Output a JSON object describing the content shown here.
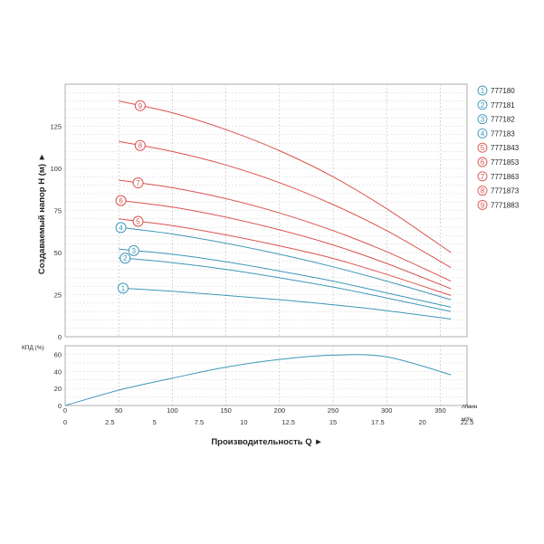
{
  "chart_data": [
    {
      "type": "line",
      "ylabel": "Создаваемый напор H (м) ►",
      "ylim": [
        0,
        150
      ],
      "yticks": [
        "0",
        "25",
        "50",
        "75",
        "100",
        "125"
      ],
      "x_unit": "л/мин",
      "xlim": [
        0,
        375
      ],
      "grid": true,
      "legend_position": "right",
      "series": [
        {
          "name": "777180",
          "marker": "1",
          "color": "#3d97b9",
          "x": [
            50,
            100,
            150,
            200,
            250,
            300,
            360
          ],
          "values": [
            29,
            27,
            24.5,
            22,
            19,
            15.5,
            10.5
          ]
        },
        {
          "name": "777181",
          "marker": "2",
          "color": "#3d97b9",
          "x": [
            50,
            100,
            150,
            200,
            250,
            300,
            360
          ],
          "values": [
            47,
            44,
            40,
            35,
            29.5,
            23,
            15
          ]
        },
        {
          "name": "777182",
          "marker": "3",
          "color": "#3d97b9",
          "x": [
            50,
            100,
            150,
            200,
            250,
            300,
            360
          ],
          "values": [
            52,
            49,
            44.5,
            39,
            33,
            26,
            17.5
          ]
        },
        {
          "name": "777183",
          "marker": "4",
          "color": "#3d97b9",
          "x": [
            50,
            100,
            150,
            200,
            250,
            300,
            360
          ],
          "values": [
            65,
            61,
            55.5,
            49,
            41.5,
            33,
            22
          ]
        },
        {
          "name": "7771843",
          "marker": "5",
          "color": "#d9534f",
          "x": [
            50,
            100,
            150,
            200,
            250,
            300,
            360
          ],
          "values": [
            70,
            66,
            60.5,
            54,
            46.5,
            37,
            24.5
          ]
        },
        {
          "name": "7771853",
          "marker": "6",
          "color": "#d9534f",
          "x": [
            50,
            100,
            150,
            200,
            250,
            300,
            360
          ],
          "values": [
            81,
            77,
            71,
            63.5,
            54.5,
            43.5,
            28.5
          ]
        },
        {
          "name": "7771863",
          "marker": "7",
          "color": "#d9534f",
          "x": [
            50,
            100,
            150,
            200,
            250,
            300,
            360
          ],
          "values": [
            93,
            88.5,
            82,
            73.5,
            63,
            50.5,
            33
          ]
        },
        {
          "name": "7771873",
          "marker": "8",
          "color": "#d9534f",
          "x": [
            50,
            100,
            150,
            200,
            250,
            300,
            360
          ],
          "values": [
            116,
            110,
            102,
            91.5,
            78.5,
            63,
            41
          ]
        },
        {
          "name": "7771883",
          "marker": "9",
          "color": "#d9534f",
          "x": [
            50,
            100,
            150,
            200,
            250,
            300,
            360
          ],
          "values": [
            140,
            133,
            123,
            110.5,
            95,
            76,
            50
          ]
        }
      ]
    },
    {
      "type": "line",
      "ylabel": "КПД (%)",
      "ylim": [
        0,
        70
      ],
      "yticks": [
        "0",
        "20",
        "40",
        "60"
      ],
      "x_unit": "л/мин",
      "x2_unit": "м³/ч",
      "xticks": [
        "0",
        "50",
        "100",
        "150",
        "200",
        "250",
        "300",
        "350"
      ],
      "x2ticks": [
        "0",
        "2.5",
        "5",
        "7.5",
        "10",
        "12.5",
        "15",
        "17.5",
        "20",
        "22.5"
      ],
      "xlabel": "Производительность Q ►",
      "xlim": [
        0,
        375
      ],
      "grid": true,
      "series": [
        {
          "color": "#3d97b9",
          "x": [
            0,
            50,
            100,
            150,
            200,
            250,
            300,
            360
          ],
          "values": [
            0,
            18,
            32,
            45,
            54,
            59,
            57,
            36
          ]
        }
      ]
    }
  ]
}
